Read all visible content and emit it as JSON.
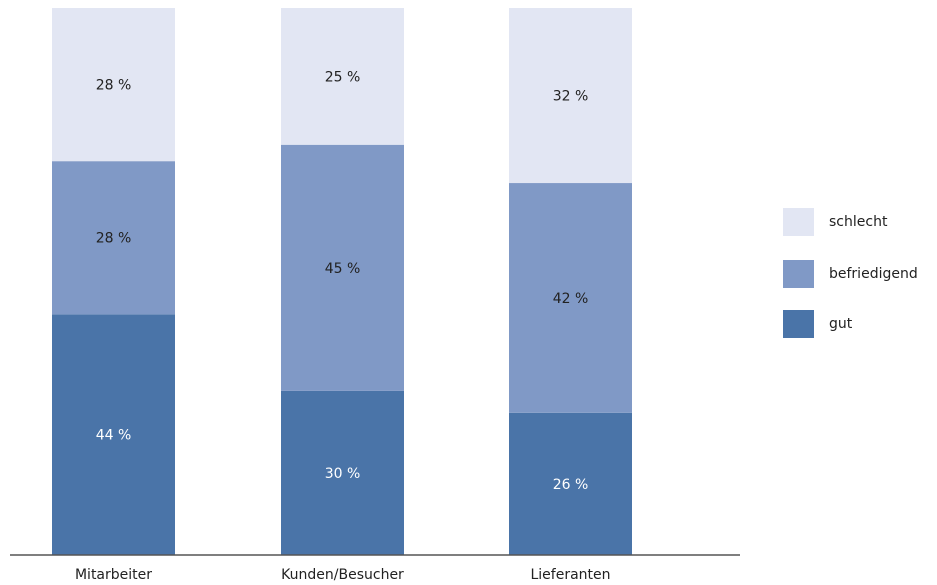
{
  "chart_data": {
    "type": "bar",
    "stacked": true,
    "title": "",
    "xlabel": "",
    "ylabel": "",
    "ylim": [
      0,
      100
    ],
    "grid": false,
    "legend_position": "right",
    "categories": [
      "Mitarbeiter",
      "Kunden/Besucher",
      "Lieferanten"
    ],
    "series": [
      {
        "name": "gut",
        "values": [
          44,
          30,
          26
        ],
        "labels": [
          "44 %",
          "30 %",
          "26 %"
        ],
        "color": "#4a74a8",
        "label_color": "#ffffff"
      },
      {
        "name": "befriedigend",
        "values": [
          28,
          45,
          42
        ],
        "labels": [
          "28 %",
          "45 %",
          "42 %"
        ],
        "color": "#8099c6",
        "label_color": "#222222"
      },
      {
        "name": "schlecht",
        "values": [
          28,
          25,
          32
        ],
        "labels": [
          "28 %",
          "25 %",
          "32 %"
        ],
        "color": "#e2e6f3",
        "label_color": "#222222"
      }
    ],
    "legend": [
      {
        "name": "schlecht",
        "color": "#e2e6f3"
      },
      {
        "name": "befriedigend",
        "color": "#8099c6"
      },
      {
        "name": "gut",
        "color": "#4a74a8"
      }
    ],
    "axis_color": "#555555"
  }
}
